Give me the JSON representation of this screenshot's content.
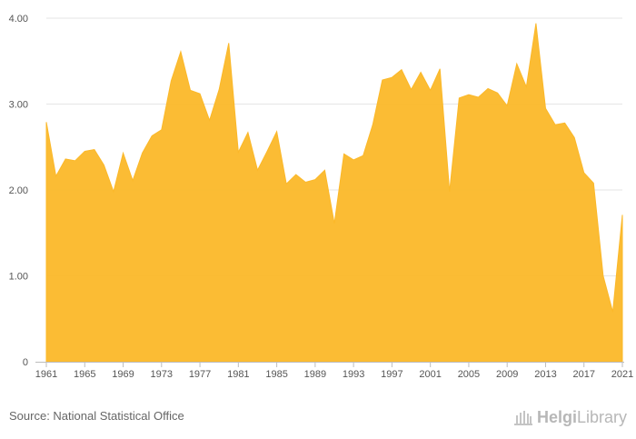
{
  "chart_data": {
    "type": "area",
    "title": "",
    "xlabel": "",
    "ylabel": "",
    "color": "#FBB829",
    "ylim": [
      0,
      4
    ],
    "xlim": [
      1961,
      2021
    ],
    "y_ticks": [
      0,
      1,
      2,
      3,
      4
    ],
    "y_tick_labels": [
      "0",
      "1.00",
      "2.00",
      "3.00",
      "4.00"
    ],
    "x_ticks": [
      1961,
      1965,
      1969,
      1973,
      1977,
      1981,
      1985,
      1989,
      1993,
      1997,
      2001,
      2005,
      2009,
      2013,
      2017,
      2021
    ],
    "x_tick_labels": [
      "1961",
      "1965",
      "1969",
      "1973",
      "1977",
      "1981",
      "1985",
      "1989",
      "1993",
      "1997",
      "2001",
      "2005",
      "2009",
      "2013",
      "2017",
      "2021"
    ],
    "x": [
      1961,
      1962,
      1963,
      1964,
      1965,
      1966,
      1967,
      1968,
      1969,
      1970,
      1971,
      1972,
      1973,
      1974,
      1975,
      1976,
      1977,
      1978,
      1979,
      1980,
      1981,
      1982,
      1983,
      1984,
      1985,
      1986,
      1987,
      1988,
      1989,
      1990,
      1991,
      1992,
      1993,
      1994,
      1995,
      1996,
      1997,
      1998,
      1999,
      2000,
      2001,
      2002,
      2003,
      2004,
      2005,
      2006,
      2007,
      2008,
      2009,
      2010,
      2011,
      2012,
      2013,
      2014,
      2015,
      2016,
      2017,
      2018,
      2019,
      2020,
      2021
    ],
    "values": [
      2.79,
      2.16,
      2.36,
      2.34,
      2.45,
      2.47,
      2.29,
      1.98,
      2.43,
      2.11,
      2.43,
      2.63,
      2.7,
      3.27,
      3.61,
      3.16,
      3.12,
      2.81,
      3.17,
      3.71,
      2.44,
      2.67,
      2.23,
      2.45,
      2.68,
      2.07,
      2.18,
      2.09,
      2.12,
      2.23,
      1.61,
      2.42,
      2.35,
      2.4,
      2.76,
      3.28,
      3.31,
      3.4,
      3.17,
      3.37,
      3.16,
      3.41,
      1.98,
      3.07,
      3.11,
      3.08,
      3.18,
      3.13,
      2.98,
      3.47,
      3.2,
      3.94,
      2.95,
      2.76,
      2.78,
      2.61,
      2.2,
      2.08,
      1.0,
      0.58,
      1.71
    ]
  },
  "footer": {
    "source": "Source: National Statistical Office",
    "logo_bold": "Helgi",
    "logo_light": "Library"
  }
}
